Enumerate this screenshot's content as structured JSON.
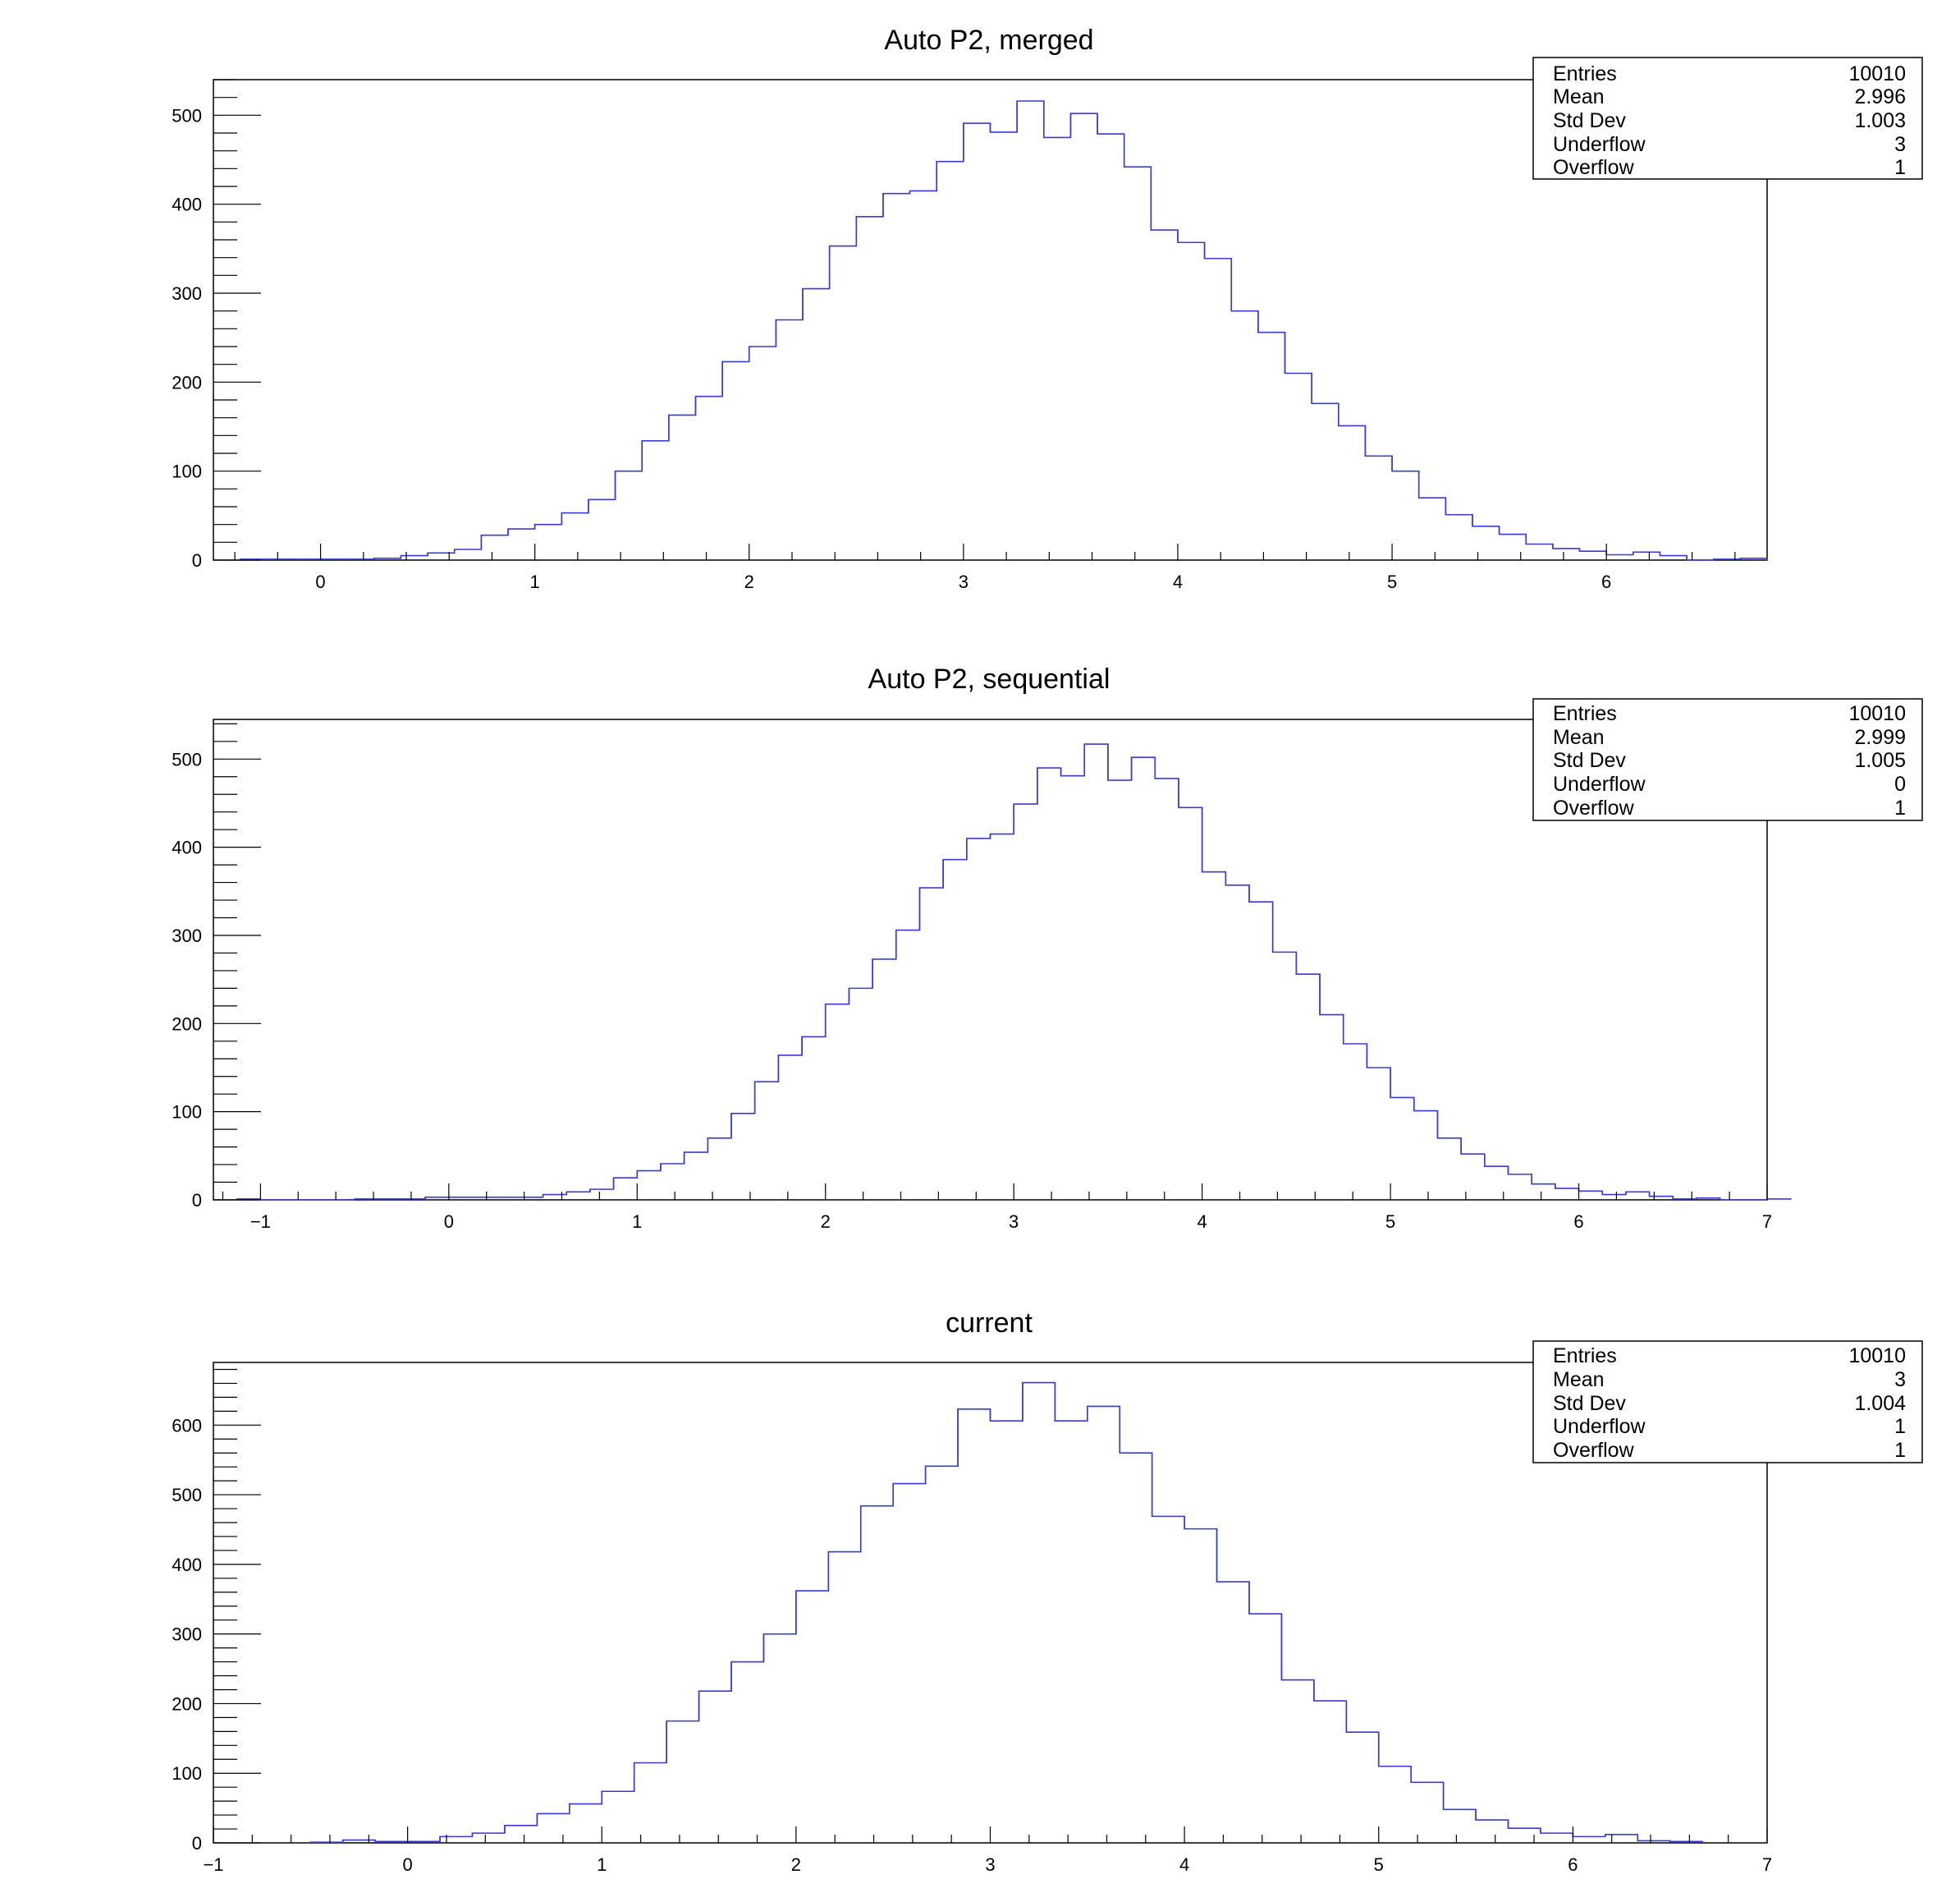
{
  "chart_data": [
    {
      "type": "histogram",
      "title": "Auto P2, merged",
      "xlim": [
        -0.5,
        6.75
      ],
      "ylim": [
        0,
        540
      ],
      "xticks": [
        0,
        1,
        2,
        3,
        4,
        5,
        6
      ],
      "xtick_labels": [
        "0",
        "1",
        "2",
        "3",
        "4",
        "5",
        "6"
      ],
      "yticks": [
        0,
        100,
        200,
        300,
        400,
        500
      ],
      "ytick_labels": [
        "0",
        "100",
        "200",
        "300",
        "400",
        "500"
      ],
      "line_color": "#3b3bd4",
      "bin_start": -0.375,
      "bin_width": 0.125,
      "counts": [
        1,
        1,
        1,
        1,
        1,
        2,
        5,
        8,
        12,
        28,
        35,
        40,
        53,
        68,
        100,
        134,
        163,
        184,
        223,
        240,
        270,
        305,
        353,
        386,
        412,
        415,
        448,
        491,
        481,
        516,
        475,
        502,
        479,
        442,
        371,
        357,
        339,
        280,
        256,
        210,
        176,
        151,
        117,
        100,
        70,
        51,
        38,
        29,
        18,
        13,
        10,
        6,
        9,
        5,
        0,
        1,
        2
      ],
      "stats": {
        "entries_label": "Entries",
        "entries": "10010",
        "mean_label": "Mean",
        "mean": "2.996",
        "stddev_label": "Std Dev",
        "stddev": "1.003",
        "underflow_label": "Underflow",
        "underflow": "3",
        "overflow_label": "Overflow",
        "overflow": "1"
      }
    },
    {
      "type": "histogram",
      "title": "Auto P2, sequential",
      "xlim": [
        -1.25,
        7
      ],
      "ylim": [
        0,
        545
      ],
      "xticks": [
        -1,
        0,
        1,
        2,
        3,
        4,
        5,
        6,
        7
      ],
      "xtick_labels": [
        "−1",
        "0",
        "1",
        "2",
        "3",
        "4",
        "5",
        "6",
        "7"
      ],
      "yticks": [
        0,
        100,
        200,
        300,
        400,
        500
      ],
      "ytick_labels": [
        "0",
        "100",
        "200",
        "300",
        "400",
        "500"
      ],
      "line_color": "#3b3bd4",
      "bin_start": -1.125,
      "bin_width": 0.125,
      "counts": [
        1,
        0,
        0,
        0,
        0,
        1,
        1,
        1,
        3,
        3,
        3,
        3,
        3,
        6,
        9,
        12,
        25,
        33,
        41,
        54,
        70,
        98,
        134,
        164,
        185,
        222,
        240,
        273,
        306,
        354,
        386,
        410,
        415,
        449,
        490,
        481,
        517,
        476,
        502,
        478,
        445,
        372,
        357,
        338,
        281,
        256,
        210,
        177,
        150,
        116,
        101,
        70,
        52,
        38,
        29,
        18,
        13,
        10,
        6,
        9,
        4,
        1,
        2,
        0,
        0,
        1
      ],
      "stats": {
        "entries_label": "Entries",
        "entries": "10010",
        "mean_label": "Mean",
        "mean": "2.999",
        "stddev_label": "Std Dev",
        "stddev": "1.005",
        "underflow_label": "Underflow",
        "underflow": "0",
        "overflow_label": "Overflow",
        "overflow": "1"
      }
    },
    {
      "type": "histogram",
      "title": "current",
      "xlim": [
        -1,
        7
      ],
      "ylim": [
        0,
        690
      ],
      "xticks": [
        -1,
        0,
        1,
        2,
        3,
        4,
        5,
        6,
        7
      ],
      "xtick_labels": [
        "−1",
        "0",
        "1",
        "2",
        "3",
        "4",
        "5",
        "6",
        "7"
      ],
      "yticks": [
        0,
        100,
        200,
        300,
        400,
        500,
        600
      ],
      "ytick_labels": [
        "0",
        "100",
        "200",
        "300",
        "400",
        "500",
        "600"
      ],
      "line_color": "#3b3bd4",
      "bin_start": -0.5,
      "bin_width": 0.166667,
      "counts": [
        1,
        4,
        2,
        2,
        9,
        14,
        25,
        42,
        56,
        74,
        115,
        175,
        218,
        260,
        300,
        362,
        418,
        484,
        516,
        541,
        623,
        606,
        661,
        606,
        627,
        560,
        469,
        451,
        375,
        329,
        234,
        204,
        159,
        110,
        87,
        48,
        33,
        21,
        14,
        9,
        12,
        3,
        2
      ],
      "stats": {
        "entries_label": "Entries",
        "entries": "10010",
        "mean_label": "Mean",
        "mean": "3",
        "stddev_label": "Std Dev",
        "stddev": "1.004",
        "underflow_label": "Underflow",
        "underflow": "1",
        "overflow_label": "Overflow",
        "overflow": "1"
      }
    }
  ]
}
